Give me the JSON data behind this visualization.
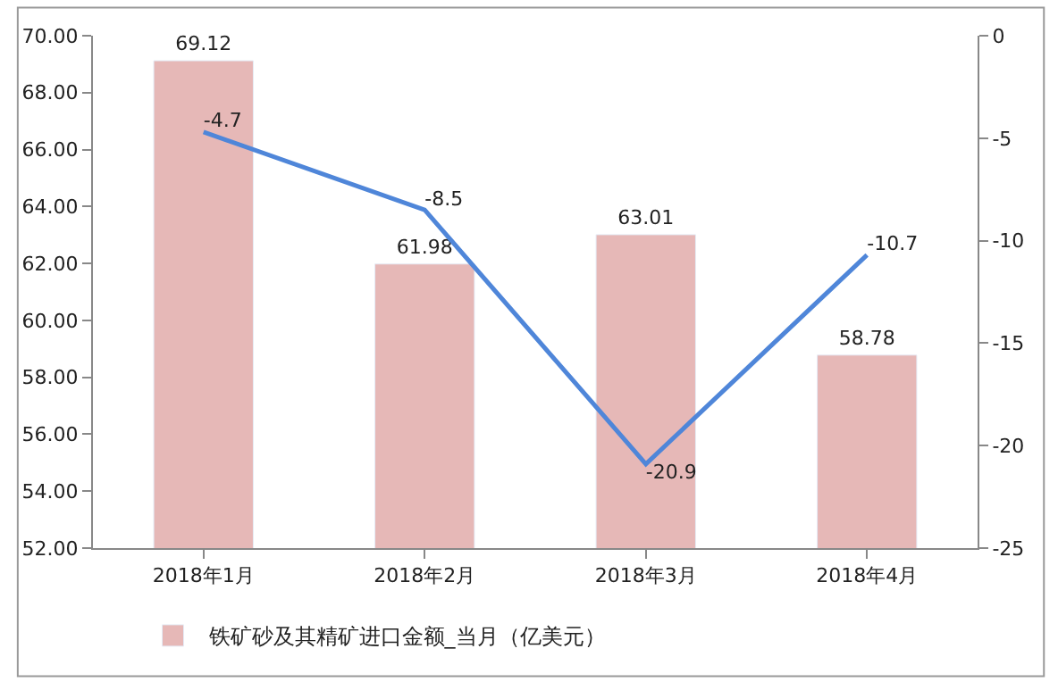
{
  "chart_data": {
    "type": "bar",
    "categories": [
      "2018年1月",
      "2018年2月",
      "2018年3月",
      "2018年4月"
    ],
    "series": [
      {
        "name": "铁矿砂及其精矿进口金额_当月（亿美元）",
        "color": "#e6b8b7",
        "values": [
          69.12,
          61.98,
          63.01,
          58.78
        ]
      },
      {
        "type": "line",
        "axis": "y2",
        "color": "#4f86d9",
        "values": [
          -4.7,
          -8.5,
          -20.9,
          -10.7
        ]
      }
    ],
    "ylim": [
      52,
      70
    ],
    "yticks": [
      {
        "value": 52,
        "label": "52.00"
      },
      {
        "value": 54,
        "label": "54.00"
      },
      {
        "value": 56,
        "label": "56.00"
      },
      {
        "value": 58,
        "label": "58.00"
      },
      {
        "value": 60,
        "label": "60.00"
      },
      {
        "value": 62,
        "label": "62.00"
      },
      {
        "value": 64,
        "label": "64.00"
      },
      {
        "value": 66,
        "label": "66.00"
      },
      {
        "value": 68,
        "label": "68.00"
      },
      {
        "value": 70,
        "label": "70.00"
      }
    ],
    "y2lim": [
      -25,
      0
    ],
    "y2ticks": [
      -25,
      -20,
      -15,
      -10,
      -5,
      0
    ],
    "data_labels": true,
    "legend": "bottom",
    "marker": "none",
    "line_style": "solid"
  }
}
